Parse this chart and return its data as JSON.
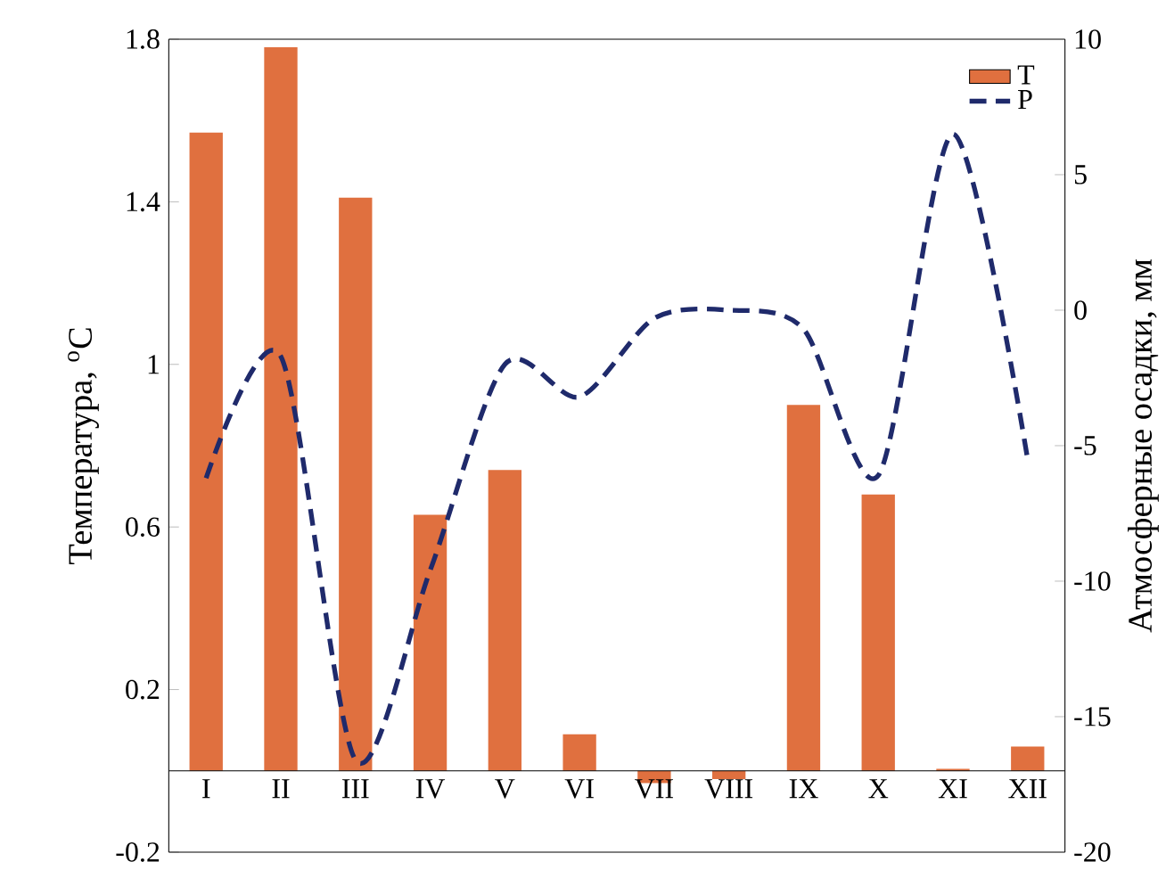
{
  "chart_data": {
    "type": "bar",
    "categories": [
      "I",
      "II",
      "III",
      "IV",
      "V",
      "VI",
      "VII",
      "VIII",
      "IX",
      "X",
      "XI",
      "XII"
    ],
    "series": [
      {
        "name": "T",
        "color": "#e0703f",
        "values": [
          1.57,
          1.78,
          1.41,
          0.63,
          0.74,
          0.09,
          -0.03,
          -0.02,
          0.9,
          0.68,
          0.005,
          0.06
        ]
      },
      {
        "name": "P",
        "type": "line",
        "axis": "y2",
        "color": "#1f2a6b",
        "line_style": "dashed",
        "values": [
          -6.2,
          -1.7,
          -16.6,
          -9.6,
          -2.0,
          -3.2,
          -0.3,
          0.0,
          -0.7,
          -6.1,
          6.5,
          -5.5
        ]
      }
    ],
    "ylabel": "Температура, $^{o}$C",
    "y2label": "Атмосферные  осадки, мм",
    "ylim": [
      -0.2,
      1.8
    ],
    "yticks": [
      -0.2,
      0.2,
      0.6,
      1,
      1.4,
      1.8
    ],
    "y2lim": [
      -20,
      10
    ],
    "y2ticks": [
      -20,
      -15,
      -10,
      -5,
      0,
      5,
      10
    ],
    "grid": false,
    "legend": "top right",
    "marker": "none"
  }
}
